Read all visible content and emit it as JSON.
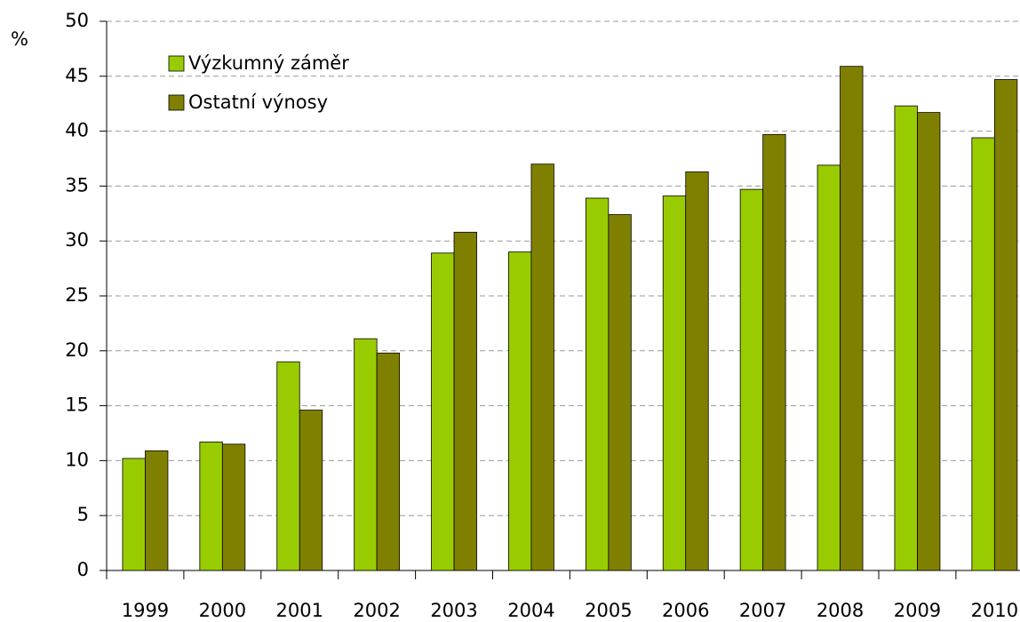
{
  "chart_data": {
    "type": "bar",
    "y_label": "%",
    "categories": [
      "1999",
      "2000",
      "2001",
      "2002",
      "2003",
      "2004",
      "2005",
      "2006",
      "2007",
      "2008",
      "2009",
      "2010"
    ],
    "series": [
      {
        "name": "Výzkumný záměr",
        "color": "#99cc00",
        "values": [
          10.2,
          11.7,
          19.0,
          21.1,
          28.9,
          29.0,
          33.9,
          34.1,
          34.7,
          36.9,
          42.3,
          39.4
        ]
      },
      {
        "name": "Ostatní výnosy",
        "color": "#808000",
        "values": [
          10.9,
          11.5,
          14.6,
          19.8,
          30.8,
          37.0,
          32.4,
          36.3,
          39.7,
          45.9,
          41.7,
          44.7
        ]
      }
    ],
    "ylim": [
      0,
      50
    ],
    "yticks": [
      0,
      5,
      10,
      15,
      20,
      25,
      30,
      35,
      40,
      45,
      50
    ],
    "grid": true,
    "legend": "upper left"
  }
}
